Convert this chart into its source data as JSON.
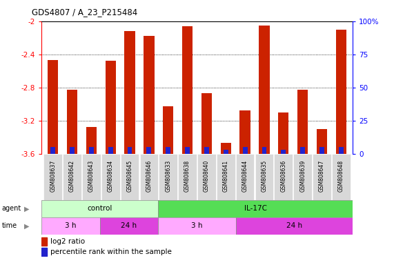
{
  "title": "GDS4807 / A_23_P215484",
  "samples": [
    "GSM808637",
    "GSM808642",
    "GSM808643",
    "GSM808634",
    "GSM808645",
    "GSM808646",
    "GSM808633",
    "GSM808638",
    "GSM808640",
    "GSM808641",
    "GSM808644",
    "GSM808635",
    "GSM808636",
    "GSM808639",
    "GSM808647",
    "GSM808648"
  ],
  "log2_ratio": [
    -2.47,
    -2.83,
    -3.28,
    -2.48,
    -2.12,
    -2.18,
    -3.03,
    -2.06,
    -2.87,
    -3.47,
    -3.08,
    -2.05,
    -3.1,
    -2.83,
    -3.3,
    -2.1
  ],
  "percentile": [
    5,
    5,
    5,
    5,
    5,
    5,
    5,
    5,
    5,
    3,
    5,
    5,
    3,
    5,
    5,
    5
  ],
  "ylim_left": [
    -3.6,
    -2.0
  ],
  "ylim_right": [
    0,
    100
  ],
  "yticks_left": [
    -3.6,
    -3.2,
    -2.8,
    -2.4,
    -2.0
  ],
  "yticks_right": [
    0,
    25,
    50,
    75,
    100
  ],
  "ytick_labels_left": [
    "-3.6",
    "-3.2",
    "-2.8",
    "-2.4",
    "-2"
  ],
  "ytick_labels_right": [
    "0",
    "25",
    "50",
    "75",
    "100%"
  ],
  "bar_color_red": "#cc2200",
  "bar_color_blue": "#2222cc",
  "agent_control_count": 6,
  "agent_il17c_count": 10,
  "agent_light_green": "#ccffcc",
  "agent_dark_green": "#55dd55",
  "time_light_pink": "#ffaaff",
  "time_dark_pink": "#dd44dd",
  "control_3h_count": 3,
  "control_24h_count": 3,
  "il17c_3h_count": 4,
  "il17c_24h_count": 6,
  "bar_width": 0.55,
  "blue_bar_pct_heights": [
    5,
    5,
    5,
    5,
    5,
    5,
    5,
    5,
    5,
    3,
    5,
    5,
    3,
    5,
    5,
    5
  ]
}
